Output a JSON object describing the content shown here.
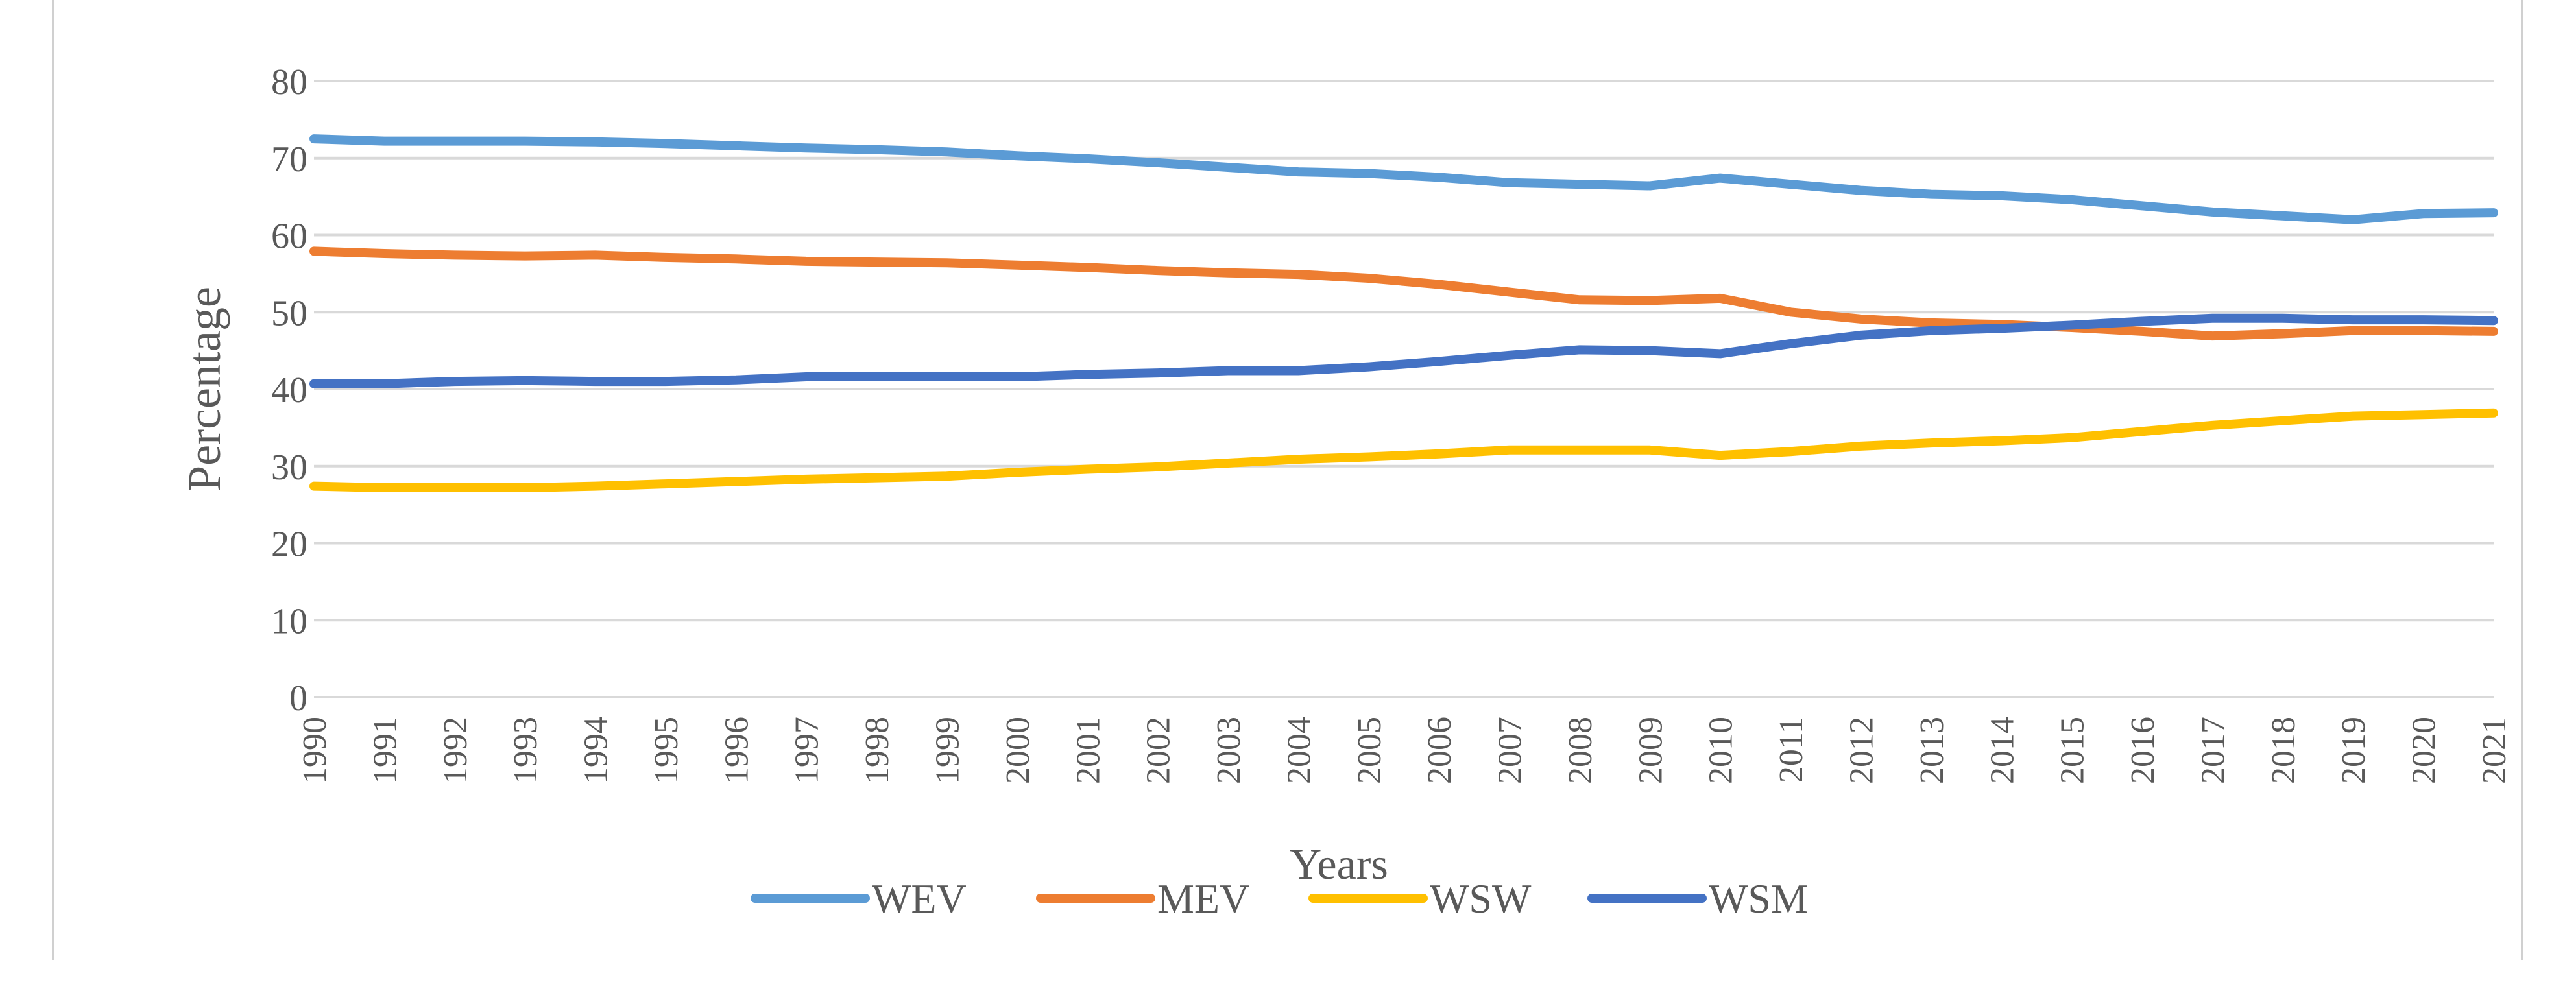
{
  "chart_data": {
    "type": "line",
    "title": "",
    "xlabel": "Years",
    "ylabel": "Percentage",
    "ylim": [
      0,
      80
    ],
    "yticks": [
      0,
      10,
      20,
      30,
      40,
      50,
      60,
      70,
      80
    ],
    "grid": true,
    "legend_position": "bottom",
    "categories": [
      "1990",
      "1991",
      "1992",
      "1993",
      "1994",
      "1995",
      "1996",
      "1997",
      "1998",
      "1999",
      "2000",
      "2001",
      "2002",
      "2003",
      "2004",
      "2005",
      "2006",
      "2007",
      "2008",
      "2009",
      "2010",
      "2011",
      "2012",
      "2013",
      "2014",
      "2015",
      "2016",
      "2017",
      "2018",
      "2019",
      "2020",
      "2021"
    ],
    "series": [
      {
        "name": "WEV",
        "color": "#5b9bd5",
        "values": [
          72.5,
          72.2,
          72.2,
          72.2,
          72.1,
          71.9,
          71.6,
          71.3,
          71.1,
          70.8,
          70.3,
          69.9,
          69.4,
          68.8,
          68.2,
          68.0,
          67.5,
          66.8,
          66.6,
          66.4,
          67.4,
          66.6,
          65.8,
          65.3,
          65.1,
          64.6,
          63.8,
          63.0,
          62.5,
          62.0,
          62.8,
          62.9
        ]
      },
      {
        "name": "MEV",
        "color": "#ed7d31",
        "values": [
          57.9,
          57.6,
          57.4,
          57.3,
          57.4,
          57.1,
          56.9,
          56.6,
          56.5,
          56.4,
          56.1,
          55.8,
          55.4,
          55.1,
          54.9,
          54.4,
          53.6,
          52.6,
          51.6,
          51.5,
          51.8,
          50.0,
          49.1,
          48.6,
          48.4,
          48.0,
          47.5,
          46.9,
          47.2,
          47.6,
          47.6,
          47.5
        ]
      },
      {
        "name": "WSW",
        "color": "#ffc000",
        "values": [
          27.4,
          27.2,
          27.2,
          27.2,
          27.4,
          27.7,
          28.0,
          28.3,
          28.5,
          28.7,
          29.2,
          29.6,
          29.9,
          30.4,
          30.9,
          31.2,
          31.6,
          32.1,
          32.1,
          32.1,
          31.4,
          31.9,
          32.6,
          33.0,
          33.3,
          33.7,
          34.5,
          35.3,
          35.9,
          36.5,
          36.7,
          36.9
        ]
      },
      {
        "name": "WSM",
        "color": "#4472c4",
        "values": [
          40.7,
          40.7,
          41.0,
          41.1,
          41.0,
          41.0,
          41.2,
          41.6,
          41.6,
          41.6,
          41.6,
          41.9,
          42.1,
          42.4,
          42.4,
          42.9,
          43.6,
          44.4,
          45.1,
          45.0,
          44.6,
          45.9,
          47.0,
          47.6,
          47.9,
          48.3,
          48.8,
          49.2,
          49.2,
          49.0,
          49.0,
          48.9
        ]
      }
    ]
  }
}
